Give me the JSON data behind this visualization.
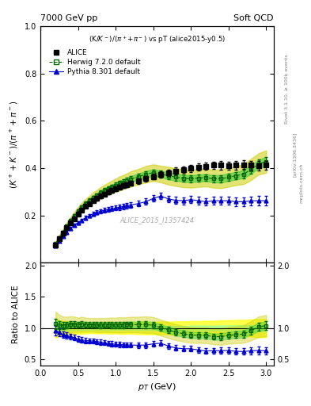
{
  "title_left": "7000 GeV pp",
  "title_right": "Soft QCD",
  "plot_title": "(K/K$^-$)/($\\pi^+$+$\\pi^-$) vs pT (alice2015-y0.5)",
  "ylabel_main": "$(K^+ + K^-)$/(pi$^+$ + pi$^-$)",
  "ylabel_ratio": "Ratio to ALICE",
  "xlabel": "$p_T$ (GeV)",
  "watermark": "ALICE_2015_I1357424",
  "rivet_label": "Rivet 3.1.10, ≥ 100k events",
  "arxiv_label": "[arXiv:1306.3436]",
  "mcplots_label": "mcplots.cern.ch",
  "alice_pt": [
    0.2,
    0.25,
    0.3,
    0.35,
    0.4,
    0.45,
    0.5,
    0.55,
    0.6,
    0.65,
    0.7,
    0.75,
    0.8,
    0.85,
    0.9,
    0.95,
    1.0,
    1.05,
    1.1,
    1.15,
    1.2,
    1.3,
    1.4,
    1.5,
    1.6,
    1.7,
    1.8,
    1.9,
    2.0,
    2.1,
    2.2,
    2.3,
    2.4,
    2.5,
    2.6,
    2.7,
    2.8,
    2.9,
    3.0
  ],
  "alice_y": [
    0.075,
    0.1,
    0.125,
    0.148,
    0.168,
    0.187,
    0.207,
    0.222,
    0.238,
    0.25,
    0.262,
    0.272,
    0.282,
    0.291,
    0.298,
    0.305,
    0.313,
    0.319,
    0.325,
    0.33,
    0.336,
    0.345,
    0.355,
    0.364,
    0.373,
    0.38,
    0.388,
    0.393,
    0.4,
    0.405,
    0.408,
    0.412,
    0.412,
    0.41,
    0.412,
    0.415,
    0.412,
    0.41,
    0.412
  ],
  "alice_yerr": [
    0.004,
    0.004,
    0.005,
    0.005,
    0.006,
    0.006,
    0.006,
    0.007,
    0.007,
    0.007,
    0.007,
    0.008,
    0.008,
    0.008,
    0.009,
    0.009,
    0.009,
    0.01,
    0.01,
    0.01,
    0.01,
    0.011,
    0.012,
    0.012,
    0.013,
    0.013,
    0.014,
    0.014,
    0.015,
    0.015,
    0.016,
    0.016,
    0.017,
    0.017,
    0.018,
    0.018,
    0.019,
    0.02,
    0.02
  ],
  "herwig_pt": [
    0.2,
    0.25,
    0.3,
    0.35,
    0.4,
    0.45,
    0.5,
    0.55,
    0.6,
    0.65,
    0.7,
    0.75,
    0.8,
    0.85,
    0.9,
    0.95,
    1.0,
    1.05,
    1.1,
    1.15,
    1.2,
    1.3,
    1.4,
    1.5,
    1.6,
    1.7,
    1.8,
    1.9,
    2.0,
    2.1,
    2.2,
    2.3,
    2.4,
    2.5,
    2.6,
    2.7,
    2.8,
    2.9,
    3.0
  ],
  "herwig_y": [
    0.08,
    0.105,
    0.13,
    0.155,
    0.178,
    0.198,
    0.218,
    0.235,
    0.25,
    0.263,
    0.275,
    0.285,
    0.295,
    0.305,
    0.313,
    0.32,
    0.328,
    0.335,
    0.341,
    0.348,
    0.354,
    0.364,
    0.374,
    0.381,
    0.375,
    0.368,
    0.362,
    0.357,
    0.355,
    0.358,
    0.36,
    0.355,
    0.355,
    0.362,
    0.368,
    0.375,
    0.395,
    0.418,
    0.428
  ],
  "herwig_yerr": [
    0.004,
    0.005,
    0.005,
    0.006,
    0.006,
    0.007,
    0.007,
    0.008,
    0.008,
    0.008,
    0.009,
    0.009,
    0.01,
    0.01,
    0.01,
    0.011,
    0.011,
    0.012,
    0.012,
    0.012,
    0.013,
    0.013,
    0.014,
    0.014,
    0.014,
    0.015,
    0.015,
    0.015,
    0.015,
    0.015,
    0.015,
    0.015,
    0.016,
    0.016,
    0.016,
    0.017,
    0.018,
    0.018,
    0.019
  ],
  "pythia_pt": [
    0.2,
    0.25,
    0.3,
    0.35,
    0.4,
    0.45,
    0.5,
    0.55,
    0.6,
    0.65,
    0.7,
    0.75,
    0.8,
    0.85,
    0.9,
    0.95,
    1.0,
    1.05,
    1.1,
    1.15,
    1.2,
    1.3,
    1.4,
    1.5,
    1.6,
    1.7,
    1.8,
    1.9,
    2.0,
    2.1,
    2.2,
    2.3,
    2.4,
    2.5,
    2.6,
    2.7,
    2.8,
    2.9,
    3.0
  ],
  "pythia_y": [
    0.072,
    0.093,
    0.112,
    0.13,
    0.145,
    0.158,
    0.17,
    0.18,
    0.19,
    0.199,
    0.207,
    0.213,
    0.218,
    0.222,
    0.225,
    0.228,
    0.231,
    0.235,
    0.238,
    0.241,
    0.244,
    0.25,
    0.258,
    0.272,
    0.282,
    0.27,
    0.264,
    0.262,
    0.267,
    0.262,
    0.258,
    0.262,
    0.262,
    0.262,
    0.258,
    0.258,
    0.262,
    0.262,
    0.262
  ],
  "pythia_yerr": [
    0.004,
    0.005,
    0.005,
    0.006,
    0.006,
    0.007,
    0.007,
    0.007,
    0.008,
    0.008,
    0.008,
    0.009,
    0.009,
    0.009,
    0.01,
    0.01,
    0.01,
    0.011,
    0.011,
    0.011,
    0.012,
    0.012,
    0.013,
    0.013,
    0.014,
    0.014,
    0.015,
    0.015,
    0.015,
    0.016,
    0.016,
    0.016,
    0.017,
    0.017,
    0.018,
    0.018,
    0.019,
    0.02,
    0.021
  ],
  "color_alice": "#000000",
  "color_herwig": "#006600",
  "color_pythia": "#0000cc",
  "color_herwig_band_inner": "#33cc33",
  "color_herwig_band_outer": "#cccc00",
  "color_alice_syst": "#ffff00",
  "color_alice_syst_inner": "#99ff99",
  "ylim_main": [
    0.0,
    1.0
  ],
  "ylim_ratio": [
    0.4,
    2.05
  ],
  "xlim": [
    0.0,
    3.1
  ],
  "yticks_main": [
    0.2,
    0.4,
    0.6,
    0.8,
    1.0
  ],
  "yticks_ratio": [
    0.5,
    1.0,
    1.5,
    2.0
  ]
}
